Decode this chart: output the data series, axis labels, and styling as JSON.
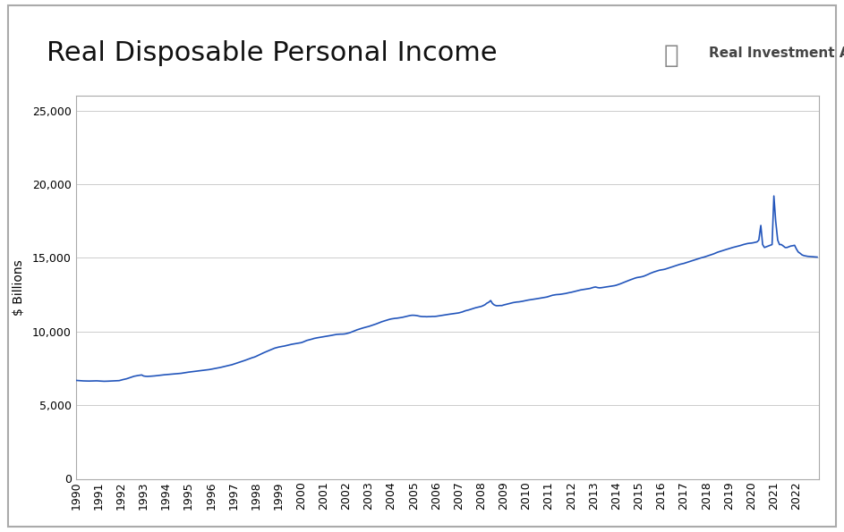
{
  "title": "Real Disposable Personal Income",
  "ylabel": "$ Billions",
  "watermark": "Real Investment Advice",
  "line_color": "#2255BB",
  "background_color": "#ffffff",
  "plot_bg_color": "#ffffff",
  "grid_color": "#cccccc",
  "title_fontsize": 22,
  "ylabel_fontsize": 10,
  "tick_fontsize": 9,
  "ylim": [
    0,
    26000
  ],
  "yticks": [
    0,
    5000,
    10000,
    15000,
    20000,
    25000
  ],
  "x_ticklabels": [
    "1990",
    "1991",
    "1992",
    "1993",
    "1994",
    "1995",
    "1996",
    "1997",
    "1998",
    "1999",
    "2000",
    "2001",
    "2002",
    "2003",
    "2004",
    "2005",
    "2006",
    "2007",
    "2008",
    "2009",
    "2010",
    "2011",
    "2012",
    "2013",
    "2014",
    "2015",
    "2016",
    "2017",
    "2018",
    "2019",
    "2020",
    "2021",
    "2022"
  ],
  "x_values": [
    1990.0,
    1990.08,
    1990.17,
    1990.25,
    1990.33,
    1990.42,
    1990.5,
    1990.58,
    1990.67,
    1990.75,
    1990.83,
    1990.92,
    1991.0,
    1991.08,
    1991.17,
    1991.25,
    1991.33,
    1991.42,
    1991.5,
    1991.58,
    1991.67,
    1991.75,
    1991.83,
    1991.92,
    1992.0,
    1992.08,
    1992.17,
    1992.25,
    1992.33,
    1992.42,
    1992.5,
    1992.58,
    1992.67,
    1992.75,
    1992.83,
    1992.92,
    1993.0,
    1993.08,
    1993.17,
    1993.25,
    1993.33,
    1993.42,
    1993.5,
    1993.58,
    1993.67,
    1993.75,
    1993.83,
    1993.92,
    1994.0,
    1994.08,
    1994.17,
    1994.25,
    1994.33,
    1994.42,
    1994.5,
    1994.58,
    1994.67,
    1994.75,
    1994.83,
    1994.92,
    1995.0,
    1995.08,
    1995.17,
    1995.25,
    1995.33,
    1995.42,
    1995.5,
    1995.58,
    1995.67,
    1995.75,
    1995.83,
    1995.92,
    1996.0,
    1996.08,
    1996.17,
    1996.25,
    1996.33,
    1996.42,
    1996.5,
    1996.58,
    1996.67,
    1996.75,
    1996.83,
    1996.92,
    1997.0,
    1997.08,
    1997.17,
    1997.25,
    1997.33,
    1997.42,
    1997.5,
    1997.58,
    1997.67,
    1997.75,
    1997.83,
    1997.92,
    1998.0,
    1998.08,
    1998.17,
    1998.25,
    1998.33,
    1998.42,
    1998.5,
    1998.58,
    1998.67,
    1998.75,
    1998.83,
    1998.92,
    1999.0,
    1999.08,
    1999.17,
    1999.25,
    1999.33,
    1999.42,
    1999.5,
    1999.58,
    1999.67,
    1999.75,
    1999.83,
    1999.92,
    2000.0,
    2000.08,
    2000.17,
    2000.25,
    2000.33,
    2000.42,
    2000.5,
    2000.58,
    2000.67,
    2000.75,
    2000.83,
    2000.92,
    2001.0,
    2001.08,
    2001.17,
    2001.25,
    2001.33,
    2001.42,
    2001.5,
    2001.58,
    2001.67,
    2001.75,
    2001.83,
    2001.92,
    2002.0,
    2002.08,
    2002.17,
    2002.25,
    2002.33,
    2002.42,
    2002.5,
    2002.58,
    2002.67,
    2002.75,
    2002.83,
    2002.92,
    2003.0,
    2003.08,
    2003.17,
    2003.25,
    2003.33,
    2003.42,
    2003.5,
    2003.58,
    2003.67,
    2003.75,
    2003.83,
    2003.92,
    2004.0,
    2004.08,
    2004.17,
    2004.25,
    2004.33,
    2004.42,
    2004.5,
    2004.58,
    2004.67,
    2004.75,
    2004.83,
    2004.92,
    2005.0,
    2005.08,
    2005.17,
    2005.25,
    2005.33,
    2005.42,
    2005.5,
    2005.58,
    2005.67,
    2005.75,
    2005.83,
    2005.92,
    2006.0,
    2006.08,
    2006.17,
    2006.25,
    2006.33,
    2006.42,
    2006.5,
    2006.58,
    2006.67,
    2006.75,
    2006.83,
    2006.92,
    2007.0,
    2007.08,
    2007.17,
    2007.25,
    2007.33,
    2007.42,
    2007.5,
    2007.58,
    2007.67,
    2007.75,
    2007.83,
    2007.92,
    2008.0,
    2008.08,
    2008.17,
    2008.25,
    2008.33,
    2008.42,
    2008.5,
    2008.58,
    2008.67,
    2008.75,
    2008.83,
    2008.92,
    2009.0,
    2009.08,
    2009.17,
    2009.25,
    2009.33,
    2009.42,
    2009.5,
    2009.58,
    2009.67,
    2009.75,
    2009.83,
    2009.92,
    2010.0,
    2010.08,
    2010.17,
    2010.25,
    2010.33,
    2010.42,
    2010.5,
    2010.58,
    2010.67,
    2010.75,
    2010.83,
    2010.92,
    2011.0,
    2011.08,
    2011.17,
    2011.25,
    2011.33,
    2011.42,
    2011.5,
    2011.58,
    2011.67,
    2011.75,
    2011.83,
    2011.92,
    2012.0,
    2012.08,
    2012.17,
    2012.25,
    2012.33,
    2012.42,
    2012.5,
    2012.58,
    2012.67,
    2012.75,
    2012.83,
    2012.92,
    2013.0,
    2013.08,
    2013.17,
    2013.25,
    2013.33,
    2013.42,
    2013.5,
    2013.58,
    2013.67,
    2013.75,
    2013.83,
    2013.92,
    2014.0,
    2014.08,
    2014.17,
    2014.25,
    2014.33,
    2014.42,
    2014.5,
    2014.58,
    2014.67,
    2014.75,
    2014.83,
    2014.92,
    2015.0,
    2015.08,
    2015.17,
    2015.25,
    2015.33,
    2015.42,
    2015.5,
    2015.58,
    2015.67,
    2015.75,
    2015.83,
    2015.92,
    2016.0,
    2016.08,
    2016.17,
    2016.25,
    2016.33,
    2016.42,
    2016.5,
    2016.58,
    2016.67,
    2016.75,
    2016.83,
    2016.92,
    2017.0,
    2017.08,
    2017.17,
    2017.25,
    2017.33,
    2017.42,
    2017.5,
    2017.58,
    2017.67,
    2017.75,
    2017.83,
    2017.92,
    2018.0,
    2018.08,
    2018.17,
    2018.25,
    2018.33,
    2018.42,
    2018.5,
    2018.58,
    2018.67,
    2018.75,
    2018.83,
    2018.92,
    2019.0,
    2019.08,
    2019.17,
    2019.25,
    2019.33,
    2019.42,
    2019.5,
    2019.58,
    2019.67,
    2019.75,
    2019.83,
    2019.92,
    2020.0,
    2020.08,
    2020.17,
    2020.25,
    2020.33,
    2020.42,
    2020.5,
    2020.58,
    2020.67,
    2020.75,
    2020.83,
    2020.92,
    2021.0,
    2021.08,
    2021.17,
    2021.25,
    2021.33,
    2021.42,
    2021.5,
    2021.58,
    2021.67,
    2021.75,
    2021.83,
    2021.92,
    2022.0,
    2022.08,
    2022.17,
    2022.25,
    2022.33,
    2022.42,
    2022.5,
    2022.58,
    2022.67,
    2022.75,
    2022.83,
    2022.92
  ],
  "y_values": [
    6680,
    6670,
    6660,
    6655,
    6645,
    6640,
    6635,
    6635,
    6640,
    6645,
    6650,
    6650,
    6645,
    6635,
    6625,
    6620,
    6622,
    6628,
    6635,
    6640,
    6648,
    6655,
    6660,
    6665,
    6700,
    6730,
    6760,
    6790,
    6830,
    6870,
    6920,
    6960,
    6990,
    7010,
    7030,
    7050,
    6980,
    6960,
    6950,
    6955,
    6965,
    6975,
    6985,
    7000,
    7015,
    7030,
    7045,
    7060,
    7070,
    7080,
    7090,
    7100,
    7110,
    7120,
    7130,
    7145,
    7160,
    7180,
    7200,
    7220,
    7240,
    7255,
    7270,
    7285,
    7300,
    7320,
    7340,
    7355,
    7365,
    7380,
    7395,
    7415,
    7440,
    7460,
    7485,
    7510,
    7535,
    7560,
    7590,
    7620,
    7650,
    7680,
    7710,
    7740,
    7780,
    7820,
    7860,
    7900,
    7940,
    7985,
    8035,
    8080,
    8130,
    8180,
    8220,
    8260,
    8310,
    8370,
    8430,
    8490,
    8550,
    8610,
    8670,
    8720,
    8770,
    8820,
    8870,
    8910,
    8940,
    8965,
    8990,
    9010,
    9040,
    9070,
    9100,
    9130,
    9155,
    9180,
    9205,
    9220,
    9240,
    9280,
    9340,
    9390,
    9420,
    9450,
    9490,
    9530,
    9560,
    9580,
    9600,
    9620,
    9640,
    9660,
    9680,
    9710,
    9730,
    9760,
    9780,
    9800,
    9810,
    9820,
    9820,
    9830,
    9850,
    9880,
    9920,
    9970,
    10020,
    10070,
    10120,
    10160,
    10200,
    10240,
    10275,
    10310,
    10340,
    10380,
    10420,
    10460,
    10510,
    10560,
    10610,
    10660,
    10700,
    10740,
    10780,
    10820,
    10850,
    10870,
    10890,
    10900,
    10920,
    10940,
    10960,
    10990,
    11020,
    11050,
    11080,
    11100,
    11100,
    11090,
    11070,
    11040,
    11020,
    11010,
    11010,
    11000,
    11010,
    11010,
    11020,
    11020,
    11030,
    11050,
    11070,
    11090,
    11110,
    11130,
    11150,
    11170,
    11190,
    11210,
    11230,
    11240,
    11260,
    11290,
    11330,
    11380,
    11420,
    11450,
    11490,
    11530,
    11570,
    11610,
    11640,
    11670,
    11700,
    11750,
    11820,
    11920,
    11980,
    12100,
    11900,
    11800,
    11750,
    11750,
    11760,
    11760,
    11800,
    11830,
    11870,
    11900,
    11930,
    11960,
    11980,
    12000,
    12010,
    12030,
    12050,
    12080,
    12100,
    12130,
    12150,
    12170,
    12190,
    12210,
    12230,
    12250,
    12270,
    12290,
    12310,
    12340,
    12380,
    12420,
    12460,
    12480,
    12500,
    12510,
    12520,
    12540,
    12560,
    12580,
    12610,
    12640,
    12660,
    12690,
    12720,
    12750,
    12790,
    12820,
    12840,
    12860,
    12880,
    12900,
    12920,
    12960,
    13000,
    13020,
    12980,
    12960,
    12970,
    12990,
    13010,
    13030,
    13050,
    13070,
    13090,
    13110,
    13140,
    13180,
    13230,
    13280,
    13330,
    13380,
    13430,
    13480,
    13530,
    13580,
    13620,
    13660,
    13680,
    13700,
    13730,
    13770,
    13820,
    13880,
    13940,
    13990,
    14040,
    14080,
    14120,
    14160,
    14180,
    14200,
    14230,
    14270,
    14310,
    14360,
    14400,
    14440,
    14480,
    14520,
    14560,
    14590,
    14620,
    14660,
    14700,
    14740,
    14780,
    14830,
    14870,
    14910,
    14950,
    14990,
    15020,
    15060,
    15100,
    15140,
    15180,
    15220,
    15270,
    15330,
    15380,
    15420,
    15460,
    15500,
    15540,
    15580,
    15620,
    15660,
    15700,
    15730,
    15760,
    15790,
    15830,
    15870,
    15910,
    15940,
    15970,
    15990,
    16000,
    16020,
    16050,
    16080,
    16200,
    17200,
    15900,
    15700,
    15750,
    15800,
    15850,
    15900,
    19200,
    17500,
    16200,
    15900,
    15900,
    15800,
    15700,
    15700,
    15750,
    15800,
    15820,
    15850,
    15600,
    15400,
    15300,
    15200,
    15150,
    15120,
    15100,
    15090,
    15080,
    15070,
    15060,
    15050
  ]
}
